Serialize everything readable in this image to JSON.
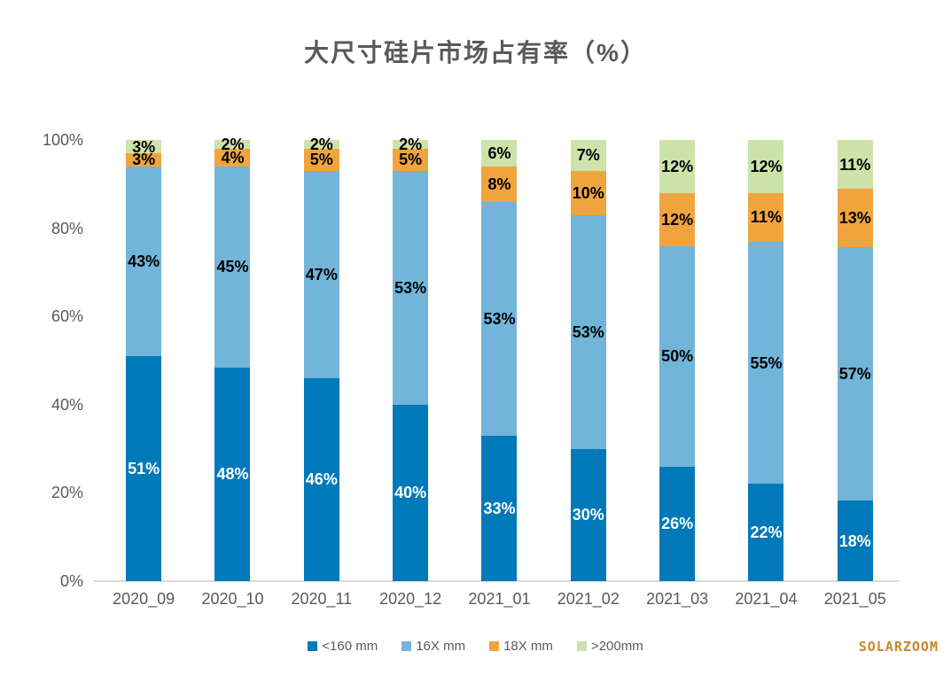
{
  "watermark": "SOLARZOOM",
  "chart_data": {
    "type": "bar",
    "stacked": true,
    "title": "大尺寸硅片市场占有率（%）",
    "categories": [
      "2020_09",
      "2020_10",
      "2020_11",
      "2020_12",
      "2021_01",
      "2021_02",
      "2021_03",
      "2021_04",
      "2021_05"
    ],
    "series": [
      {
        "name": "<160 mm",
        "color": "#0079b9",
        "label_color": "#ffffff",
        "values": [
          51,
          48,
          46,
          40,
          33,
          30,
          26,
          22,
          18
        ]
      },
      {
        "name": "16X mm",
        "color": "#72b5d9",
        "label_color": "#000000",
        "values": [
          43,
          45,
          47,
          53,
          53,
          53,
          50,
          55,
          57
        ]
      },
      {
        "name": "18X mm",
        "color": "#f0a43e",
        "label_color": "#000000",
        "values": [
          3,
          4,
          5,
          5,
          8,
          10,
          12,
          11,
          13
        ]
      },
      {
        "name": ">200mm",
        "color": "#cde3aa",
        "label_color": "#000000",
        "values": [
          3,
          2,
          2,
          2,
          6,
          7,
          12,
          12,
          11
        ]
      }
    ],
    "label_suffix": "%",
    "y_ticks": [
      0,
      20,
      40,
      60,
      80,
      100
    ],
    "y_tick_suffix": "%",
    "ylim": [
      0,
      100
    ],
    "grid": false,
    "legend_position": "bottom",
    "axis_color": "#d9d9d9",
    "text_color": "#595959"
  }
}
